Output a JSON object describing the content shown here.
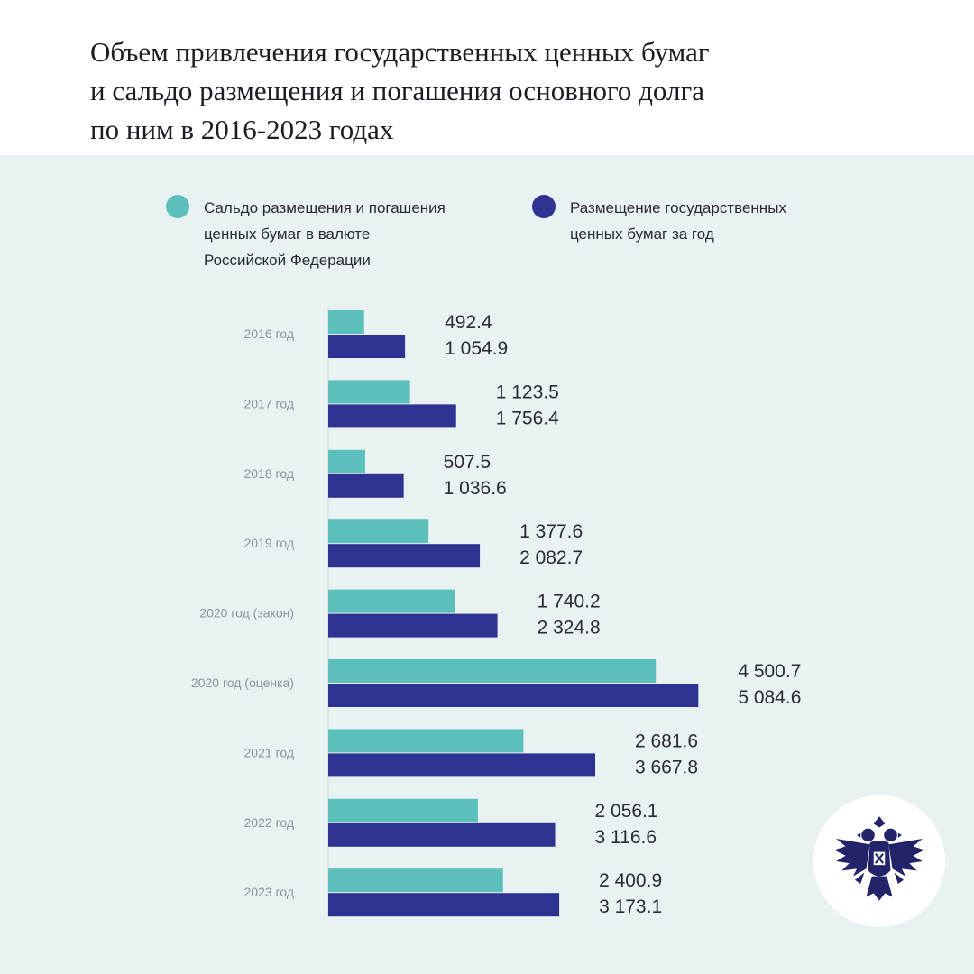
{
  "header": {
    "title": "Объем привлечения государственных ценных бумаг\nи сальдо размещения и погашения основного долга\nпо ним в 2016-2023 годах"
  },
  "colors": {
    "teal": "#5bbfbb",
    "navy": "#2e3290",
    "panel_bg": "#e9f2f2"
  },
  "legend": {
    "saldo": "Сальдо размещения и погашения\nценных бумаг в валюте\nРоссийской Федерации",
    "placement": "Размещение государственных\nценных бумаг за год"
  },
  "logo": {
    "icon": "double-headed-eagle-icon"
  },
  "chart_data": {
    "type": "bar",
    "orientation": "horizontal",
    "categories": [
      "2016 год",
      "2017 год",
      "2018 год",
      "2019 год",
      "2020 год (закон)",
      "2020 год (оценка)",
      "2021 год",
      "2022 год",
      "2023 год"
    ],
    "series": [
      {
        "name": "Сальдо размещения и погашения ценных бумаг в валюте Российской Федерации",
        "color": "#5bbfbb",
        "values": [
          492.4,
          1123.5,
          507.5,
          1377.6,
          1740.2,
          4500.7,
          2681.6,
          2056.1,
          2400.9
        ],
        "labels": [
          "492.4",
          "1 123.5",
          "507.5",
          "1 377.6",
          "1 740.2",
          "4 500.7",
          "2 681.6",
          "2 056.1",
          "2 400.9"
        ]
      },
      {
        "name": "Размещение государственных ценных бумаг за год",
        "color": "#2e3290",
        "values": [
          1054.9,
          1756.4,
          1036.6,
          2082.7,
          2324.8,
          5084.6,
          3667.8,
          3116.6,
          3173.1
        ],
        "labels": [
          "1 054.9",
          "1 756.4",
          "1 036.6",
          "2 082.7",
          "2 324.8",
          "5 084.6",
          "3 667.8",
          "3 116.6",
          "3 173.1"
        ]
      }
    ],
    "legend_position": "top",
    "grid": false
  }
}
